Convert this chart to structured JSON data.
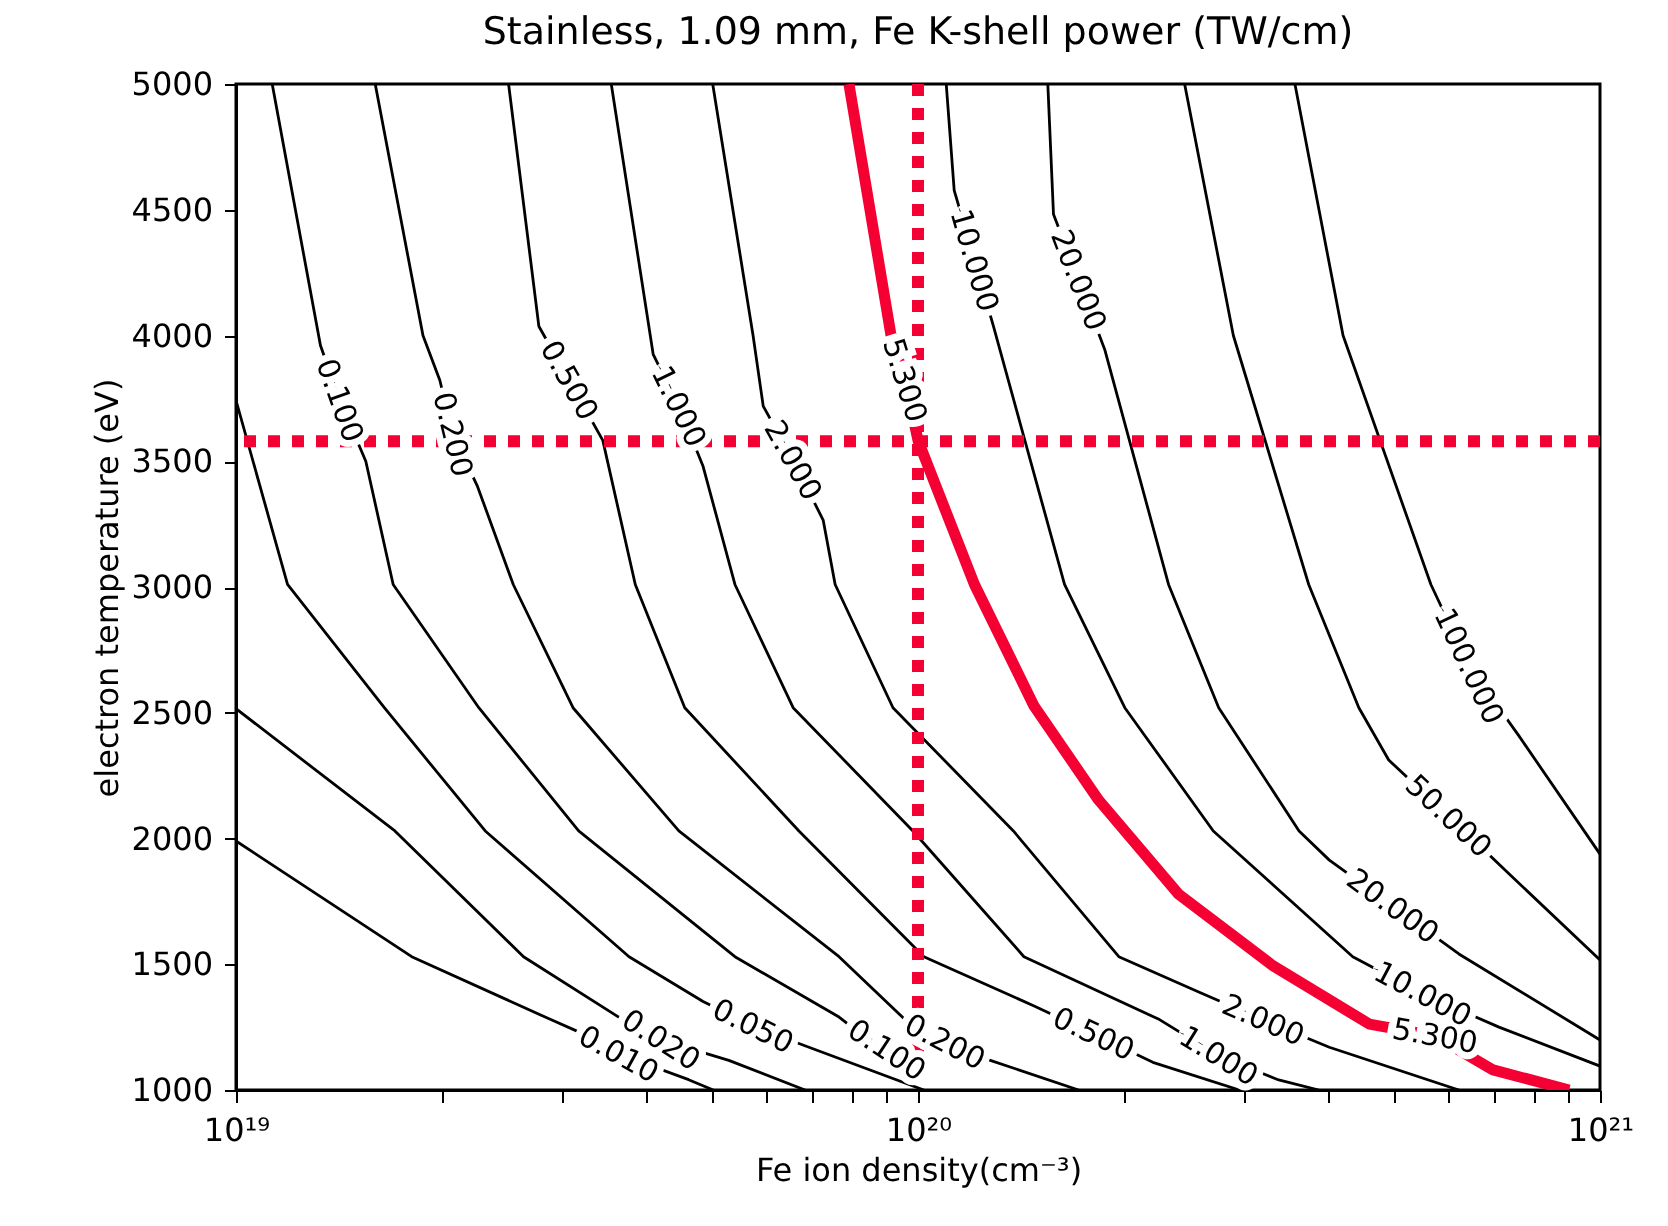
{
  "chart_data": {
    "type": "line",
    "title": "Stainless, 1.09 mm, Fe K-shell power (TW/cm)",
    "xlabel": "Fe ion density(cm⁻³)",
    "ylabel": "electron temperature (eV)",
    "log": "x",
    "xlim": [
      1e+19,
      1e+21
    ],
    "ylim": [
      1000,
      5000
    ],
    "xticks": [
      {
        "value": 1e+19,
        "label": "10¹⁹"
      },
      {
        "value": 2e+19,
        "label": null
      },
      {
        "value": 3e+19,
        "label": null
      },
      {
        "value": 4e+19,
        "label": null
      },
      {
        "value": 5e+19,
        "label": null
      },
      {
        "value": 6e+19,
        "label": null
      },
      {
        "value": 7e+19,
        "label": null
      },
      {
        "value": 8e+19,
        "label": null
      },
      {
        "value": 9e+19,
        "label": null
      },
      {
        "value": 1e+20,
        "label": "10²⁰"
      },
      {
        "value": 2e+20,
        "label": null
      },
      {
        "value": 3e+20,
        "label": null
      },
      {
        "value": 4e+20,
        "label": null
      },
      {
        "value": 5e+20,
        "label": null
      },
      {
        "value": 6e+20,
        "label": null
      },
      {
        "value": 7e+20,
        "label": null
      },
      {
        "value": 8e+20,
        "label": null
      },
      {
        "value": 9e+20,
        "label": null
      },
      {
        "value": 1e+21,
        "label": "10²¹"
      }
    ],
    "yticks": [
      1000,
      1500,
      2000,
      2500,
      3000,
      3500,
      4000,
      4500,
      5000
    ],
    "series": [
      {
        "color": "#000000",
        "x": [
          1e+19,
          1.81e+19,
          2.84e+19,
          3.18e+19,
          3.64e+19,
          4.61e+19,
          5.01e+19
        ],
        "values": [
          1990,
          1530,
          1290,
          1231,
          1143,
          1041,
          1000
        ]
      },
      {
        "color": "#000000",
        "x": [
          1e+19,
          1.71e+19,
          2.64e+19,
          3.64e+19,
          3.85e+19,
          4.2e+19,
          5.28e+19,
          6.83e+19
        ],
        "values": [
          2516,
          2030,
          1530,
          1290,
          1265,
          1199,
          1118,
          1000
        ]
      },
      {
        "color": "#000000",
        "x": [
          1e+19,
          1.19e+19,
          1.65e+19,
          2.32e+19,
          3.77e+19,
          4.84e+19,
          5.73e+19,
          6.78e+19,
          1.02e+20
        ],
        "values": [
          3742,
          3010,
          2520,
          2030,
          1530,
          1352,
          1254,
          1179,
          1000
        ]
      },
      {
        "color": "#000000",
        "x": [
          1.13e+19,
          1.33e+19,
          1.42e+19,
          1.55e+19,
          1.7e+19,
          2.27e+19,
          3.18e+19,
          5.39e+19,
          7.66e+19,
          8e+19,
          9e+19
        ],
        "values": [
          5000,
          3960,
          3742,
          3500,
          3010,
          2520,
          2030,
          1530,
          1290,
          1250,
          1159
        ]
      },
      {
        "color": "#000000",
        "x": [
          1.6e+19,
          1.88e+19,
          1.99e+19,
          2.08e+19,
          2.26e+19,
          2.55e+19,
          3.12e+19,
          4.46e+19,
          7.66e+19,
          9.7e+19,
          1.095e+20,
          1.27e+20,
          1.72e+20
        ],
        "values": [
          5000,
          4000,
          3822,
          3607,
          3400,
          3010,
          2520,
          2030,
          1530,
          1265,
          1191,
          1120,
          1000
        ]
      },
      {
        "color": "#000000",
        "x": [
          2.51e+19,
          2.78e+19,
          3.08e+19,
          3.45e+19,
          3.85e+19,
          4.55e+19,
          6.69e+19,
          1.02e+20,
          1.48e+20,
          1.81e+20,
          2.21e+20,
          2.96e+20
        ],
        "values": [
          5000,
          4037,
          3822,
          3583,
          3010,
          2520,
          2030,
          1530,
          1334,
          1223,
          1110,
          1000
        ]
      },
      {
        "color": "#000000",
        "x": [
          3.55e+19,
          4.09e+19,
          4.46e+19,
          4.84e+19,
          5.39e+19,
          6.56e+19,
          9.83e+19,
          1.43e+20,
          2.26e+20,
          2.76e+20,
          3.38e+20,
          3.87e+20
        ],
        "values": [
          5000,
          3925,
          3718,
          3480,
          3010,
          2520,
          2030,
          1530,
          1280,
          1135,
          1040,
          1000
        ]
      },
      {
        "color": "#000000",
        "x": [
          5e+19,
          5.73e+19,
          5.93e+19,
          6.56e+19,
          7.26e+19,
          7.56e+19,
          9.19e+19,
          1.38e+20,
          1.97e+20,
          2.58e+20,
          3.21e+20,
          4.01e+20,
          6.21e+20
        ],
        "values": [
          5000,
          4000,
          3719,
          3504,
          3266,
          3010,
          2520,
          2030,
          1530,
          1390,
          1278,
          1170,
          1000
        ]
      },
      {
        "color": "#f50032",
        "x": [
          7.92e+19,
          9.13e+19,
          9.57e+19,
          1e+20,
          1.21e+20,
          1.48e+20,
          1.84e+20,
          2.41e+20,
          3.32e+20,
          4.59e+20,
          5.73e+20,
          6.97e+20,
          9.01e+20
        ],
        "values": [
          5000,
          4000,
          3822,
          3583,
          3010,
          2526,
          2153,
          1779,
          1493,
          1262,
          1215,
          1080,
          1000
        ]
      },
      {
        "color": "#000000",
        "x": [
          1.1e+20,
          1.13e+20,
          1.21e+20,
          1.29e+20,
          1.64e+20,
          2.01e+20,
          2.71e+20,
          4.34e+20,
          5.5e+20,
          7.11e+20,
          1e+21
        ],
        "values": [
          5000,
          4577,
          4299,
          4037,
          3010,
          2520,
          2030,
          1530,
          1382,
          1250,
          1095
        ]
      },
      {
        "color": "#000000",
        "x": [
          1.55e+20,
          1.58e+20,
          1.72e+20,
          1.88e+20,
          2.33e+20,
          2.76e+20,
          3.62e+20,
          4.01e+20,
          4.97e+20,
          6.21e+20,
          1e+21
        ],
        "values": [
          5000,
          4482,
          4220,
          3941,
          3010,
          2520,
          2030,
          1914,
          1731,
          1541,
          1199
        ]
      },
      {
        "color": "#000000",
        "x": [
          2.46e+20,
          2.9e+20,
          3.74e+20,
          4.43e+20,
          4.9e+20,
          6e+20,
          7.36e+20,
          1e+21
        ],
        "values": [
          5000,
          4000,
          3010,
          2520,
          2312,
          2089,
          1859,
          1517
        ]
      },
      {
        "color": "#000000",
        "x": [
          3.57e+20,
          4.2e+20,
          5.65e+20,
          6.43e+20,
          7.61e+20,
          1e+21
        ],
        "values": [
          5000,
          4000,
          3010,
          2685,
          2407,
          1938
        ]
      }
    ],
    "ref_lines": [
      {
        "axis": "x",
        "value": 1e+20,
        "color": "#f50032",
        "line_style": "dotted"
      },
      {
        "axis": "y",
        "value": 3580,
        "color": "#f50032",
        "line_style": "dotted"
      }
    ],
    "annotations": [
      {
        "text": "0.100",
        "x": 1.42e+19,
        "y": 3742
      },
      {
        "text": "0.200",
        "x": 2.08e+19,
        "y": 3607
      },
      {
        "text": "0.500",
        "x": 3.08e+19,
        "y": 3822
      },
      {
        "text": "1.000",
        "x": 4.46e+19,
        "y": 3718
      },
      {
        "text": "2.000",
        "x": 6.56e+19,
        "y": 3504
      },
      {
        "text": "5.300",
        "x": 9.57e+19,
        "y": 3822
      },
      {
        "text": "10.000",
        "x": 1.21e+20,
        "y": 4299
      },
      {
        "text": "20.000",
        "x": 1.72e+20,
        "y": 4220
      },
      {
        "text": "0.010",
        "x": 3.64e+19,
        "y": 1143
      },
      {
        "text": "0.020",
        "x": 4.2e+19,
        "y": 1199
      },
      {
        "text": "0.050",
        "x": 5.73e+19,
        "y": 1254
      },
      {
        "text": "0.100",
        "x": 9e+19,
        "y": 1159
      },
      {
        "text": "0.200",
        "x": 1.095e+20,
        "y": 1191
      },
      {
        "text": "0.500",
        "x": 1.81e+20,
        "y": 1223
      },
      {
        "text": "1.000",
        "x": 2.76e+20,
        "y": 1135
      },
      {
        "text": "2.000",
        "x": 3.21e+20,
        "y": 1278
      },
      {
        "text": "5.300",
        "x": 5.73e+20,
        "y": 1215
      },
      {
        "text": "10.000",
        "x": 5.5e+20,
        "y": 1382
      },
      {
        "text": "20.000",
        "x": 4.97e+20,
        "y": 1731
      },
      {
        "text": "50.000",
        "x": 6e+20,
        "y": 2089
      },
      {
        "text": "100.000",
        "x": 6.43e+20,
        "y": 2685
      }
    ]
  }
}
